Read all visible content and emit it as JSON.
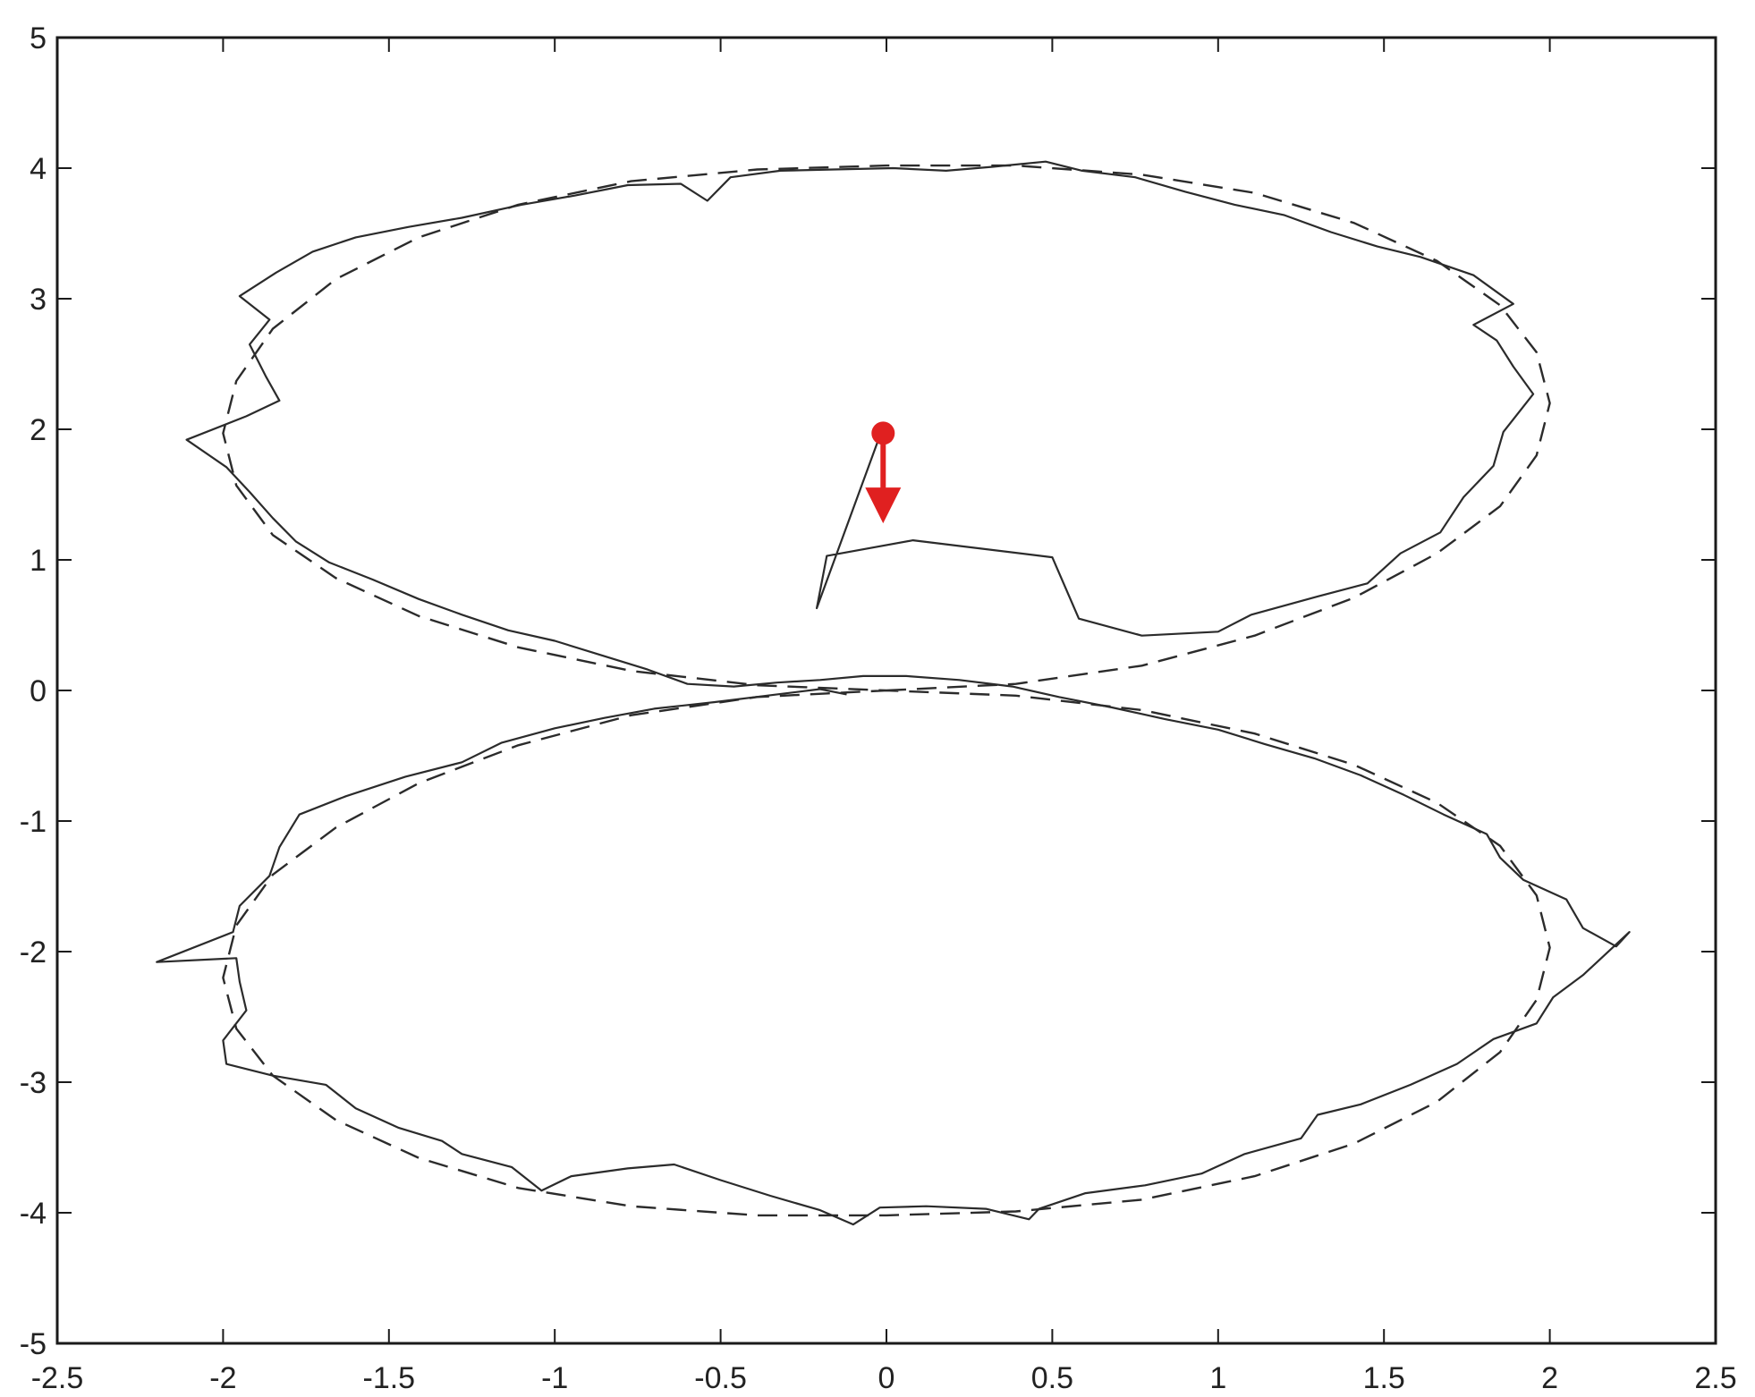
{
  "chart_data": {
    "type": "line",
    "title": "",
    "xlabel": "",
    "ylabel": "",
    "xlim": [
      -2.5,
      2.5
    ],
    "ylim": [
      -5,
      5
    ],
    "grid": false,
    "x_ticks": [
      "-2.5",
      "-2",
      "-1.5",
      "-1",
      "-0.5",
      "0",
      "0.5",
      "1",
      "1.5",
      "2",
      "2.5"
    ],
    "y_ticks": [
      "5",
      "4",
      "3",
      "2",
      "1",
      "0",
      "-1",
      "-2",
      "-3",
      "-4",
      "-5"
    ],
    "colors": {
      "trajectory": "#2b2b2b",
      "reference": "#2b2b2b",
      "marker": "#e02020",
      "axes": "#1a1a1a"
    },
    "series": [
      {
        "style": "dashed",
        "equation": "x = 2*sin(t), y = 4*sin(t)*cos(t) - ... figure-eight",
        "points": [
          [
            0.0,
            0.0
          ],
          [
            0.39,
            0.05
          ],
          [
            0.77,
            0.19
          ],
          [
            1.11,
            0.42
          ],
          [
            1.41,
            0.71
          ],
          [
            1.66,
            1.05
          ],
          [
            1.85,
            1.41
          ],
          [
            1.96,
            1.8
          ],
          [
            2.0,
            2.2
          ],
          [
            1.96,
            2.59
          ],
          [
            1.85,
            2.95
          ],
          [
            1.66,
            3.29
          ],
          [
            1.41,
            3.58
          ],
          [
            1.11,
            3.81
          ],
          [
            0.77,
            3.95
          ],
          [
            0.39,
            4.02
          ],
          [
            0.0,
            4.02
          ],
          [
            -0.39,
            3.99
          ],
          [
            -0.77,
            3.9
          ],
          [
            -1.11,
            3.72
          ],
          [
            -1.41,
            3.47
          ],
          [
            -1.66,
            3.15
          ],
          [
            -1.85,
            2.77
          ],
          [
            -1.96,
            2.37
          ],
          [
            -2.0,
            1.97
          ],
          [
            -1.96,
            1.57
          ],
          [
            -1.85,
            1.19
          ],
          [
            -1.66,
            0.86
          ],
          [
            -1.41,
            0.57
          ],
          [
            -1.11,
            0.33
          ],
          [
            -0.77,
            0.15
          ],
          [
            -0.39,
            0.04
          ],
          [
            0.0,
            0.0
          ],
          [
            0.39,
            -0.04
          ],
          [
            0.77,
            -0.15
          ],
          [
            1.11,
            -0.33
          ],
          [
            1.41,
            -0.57
          ],
          [
            1.66,
            -0.86
          ],
          [
            1.85,
            -1.19
          ],
          [
            1.96,
            -1.57
          ],
          [
            2.0,
            -1.97
          ],
          [
            1.96,
            -2.37
          ],
          [
            1.85,
            -2.77
          ],
          [
            1.66,
            -3.15
          ],
          [
            1.41,
            -3.47
          ],
          [
            1.11,
            -3.72
          ],
          [
            0.77,
            -3.9
          ],
          [
            0.39,
            -3.99
          ],
          [
            0.0,
            -4.02
          ],
          [
            -0.39,
            -4.02
          ],
          [
            -0.77,
            -3.95
          ],
          [
            -1.11,
            -3.81
          ],
          [
            -1.41,
            -3.58
          ],
          [
            -1.66,
            -3.29
          ],
          [
            -1.85,
            -2.95
          ],
          [
            -1.96,
            -2.59
          ],
          [
            -2.0,
            -2.2
          ],
          [
            -1.96,
            -1.8
          ],
          [
            -1.85,
            -1.41
          ],
          [
            -1.66,
            -1.05
          ],
          [
            -1.41,
            -0.71
          ],
          [
            -1.11,
            -0.42
          ],
          [
            -0.77,
            -0.19
          ],
          [
            -0.39,
            -0.05
          ],
          [
            0.0,
            0.0
          ]
        ]
      },
      {
        "style": "solid",
        "points": [
          [
            -0.02,
            1.95
          ],
          [
            -0.21,
            0.63
          ],
          [
            -0.18,
            1.03
          ],
          [
            0.08,
            1.15
          ],
          [
            0.5,
            1.02
          ],
          [
            0.58,
            0.55
          ],
          [
            0.77,
            0.42
          ],
          [
            1.0,
            0.45
          ],
          [
            1.1,
            0.58
          ],
          [
            1.3,
            0.72
          ],
          [
            1.45,
            0.82
          ],
          [
            1.55,
            1.05
          ],
          [
            1.67,
            1.21
          ],
          [
            1.74,
            1.48
          ],
          [
            1.83,
            1.72
          ],
          [
            1.86,
            1.98
          ],
          [
            1.95,
            2.27
          ],
          [
            1.89,
            2.48
          ],
          [
            1.84,
            2.68
          ],
          [
            1.77,
            2.8
          ],
          [
            1.89,
            2.96
          ],
          [
            1.77,
            3.18
          ],
          [
            1.61,
            3.32
          ],
          [
            1.48,
            3.4
          ],
          [
            1.34,
            3.51
          ],
          [
            1.2,
            3.64
          ],
          [
            1.05,
            3.72
          ],
          [
            0.9,
            3.82
          ],
          [
            0.75,
            3.93
          ],
          [
            0.59,
            3.98
          ],
          [
            0.48,
            4.05
          ],
          [
            0.32,
            4.01
          ],
          [
            0.18,
            3.98
          ],
          [
            0.02,
            4.0
          ],
          [
            -0.16,
            3.99
          ],
          [
            -0.32,
            3.98
          ],
          [
            -0.47,
            3.93
          ],
          [
            -0.54,
            3.75
          ],
          [
            -0.62,
            3.88
          ],
          [
            -0.78,
            3.87
          ],
          [
            -0.94,
            3.79
          ],
          [
            -1.1,
            3.72
          ],
          [
            -1.28,
            3.62
          ],
          [
            -1.44,
            3.55
          ],
          [
            -1.6,
            3.47
          ],
          [
            -1.73,
            3.36
          ],
          [
            -1.84,
            3.2
          ],
          [
            -1.95,
            3.02
          ],
          [
            -1.86,
            2.84
          ],
          [
            -1.92,
            2.65
          ],
          [
            -1.87,
            2.4
          ],
          [
            -1.83,
            2.22
          ],
          [
            -1.93,
            2.1
          ],
          [
            -2.11,
            1.92
          ],
          [
            -1.99,
            1.71
          ],
          [
            -1.92,
            1.52
          ],
          [
            -1.85,
            1.32
          ],
          [
            -1.78,
            1.14
          ],
          [
            -1.68,
            0.98
          ],
          [
            -1.55,
            0.85
          ],
          [
            -1.41,
            0.7
          ],
          [
            -1.28,
            0.58
          ],
          [
            -1.14,
            0.46
          ],
          [
            -1.0,
            0.38
          ],
          [
            -0.86,
            0.27
          ],
          [
            -0.72,
            0.16
          ],
          [
            -0.6,
            0.05
          ],
          [
            -0.46,
            0.03
          ],
          [
            -0.33,
            0.06
          ],
          [
            -0.2,
            0.08
          ],
          [
            -0.07,
            0.11
          ],
          [
            0.06,
            0.11
          ],
          [
            0.22,
            0.08
          ],
          [
            0.38,
            0.03
          ],
          [
            0.52,
            -0.05
          ],
          [
            0.68,
            -0.13
          ],
          [
            0.84,
            -0.22
          ],
          [
            1.0,
            -0.3
          ],
          [
            1.14,
            -0.41
          ],
          [
            1.29,
            -0.52
          ],
          [
            1.43,
            -0.65
          ],
          [
            1.56,
            -0.8
          ],
          [
            1.68,
            -0.95
          ],
          [
            1.81,
            -1.1
          ],
          [
            1.85,
            -1.28
          ],
          [
            1.92,
            -1.45
          ],
          [
            2.05,
            -1.6
          ],
          [
            2.1,
            -1.82
          ],
          [
            2.2,
            -1.96
          ],
          [
            2.24,
            -1.85
          ],
          [
            2.1,
            -2.18
          ],
          [
            2.01,
            -2.35
          ],
          [
            1.96,
            -2.55
          ],
          [
            1.83,
            -2.67
          ],
          [
            1.72,
            -2.86
          ],
          [
            1.58,
            -3.02
          ],
          [
            1.43,
            -3.17
          ],
          [
            1.3,
            -3.25
          ],
          [
            1.25,
            -3.43
          ],
          [
            1.08,
            -3.55
          ],
          [
            0.95,
            -3.7
          ],
          [
            0.78,
            -3.79
          ],
          [
            0.6,
            -3.85
          ],
          [
            0.46,
            -3.97
          ],
          [
            0.43,
            -4.05
          ],
          [
            0.3,
            -3.97
          ],
          [
            0.12,
            -3.95
          ],
          [
            -0.02,
            -3.96
          ],
          [
            -0.1,
            -4.09
          ],
          [
            -0.2,
            -3.98
          ],
          [
            -0.35,
            -3.87
          ],
          [
            -0.5,
            -3.75
          ],
          [
            -0.64,
            -3.63
          ],
          [
            -0.78,
            -3.66
          ],
          [
            -0.95,
            -3.72
          ],
          [
            -1.04,
            -3.83
          ],
          [
            -1.13,
            -3.65
          ],
          [
            -1.28,
            -3.55
          ],
          [
            -1.34,
            -3.45
          ],
          [
            -1.47,
            -3.35
          ],
          [
            -1.6,
            -3.2
          ],
          [
            -1.69,
            -3.02
          ],
          [
            -1.85,
            -2.95
          ],
          [
            -1.99,
            -2.86
          ],
          [
            -2.0,
            -2.68
          ],
          [
            -1.93,
            -2.45
          ],
          [
            -1.95,
            -2.23
          ],
          [
            -1.96,
            -2.05
          ],
          [
            -2.2,
            -2.08
          ],
          [
            -1.97,
            -1.85
          ],
          [
            -1.95,
            -1.65
          ],
          [
            -1.86,
            -1.42
          ],
          [
            -1.83,
            -1.2
          ],
          [
            -1.77,
            -0.95
          ],
          [
            -1.63,
            -0.81
          ],
          [
            -1.45,
            -0.66
          ],
          [
            -1.28,
            -0.55
          ],
          [
            -1.16,
            -0.4
          ],
          [
            -1.0,
            -0.29
          ],
          [
            -0.85,
            -0.21
          ],
          [
            -0.7,
            -0.14
          ],
          [
            -0.52,
            -0.09
          ],
          [
            -0.36,
            -0.04
          ],
          [
            -0.2,
            0.01
          ],
          [
            -0.12,
            -0.03
          ]
        ]
      }
    ],
    "marker": {
      "x": -0.01,
      "y": 1.97,
      "shape": "dot-with-down-arrow",
      "arrow_to_y": 1.28
    }
  }
}
